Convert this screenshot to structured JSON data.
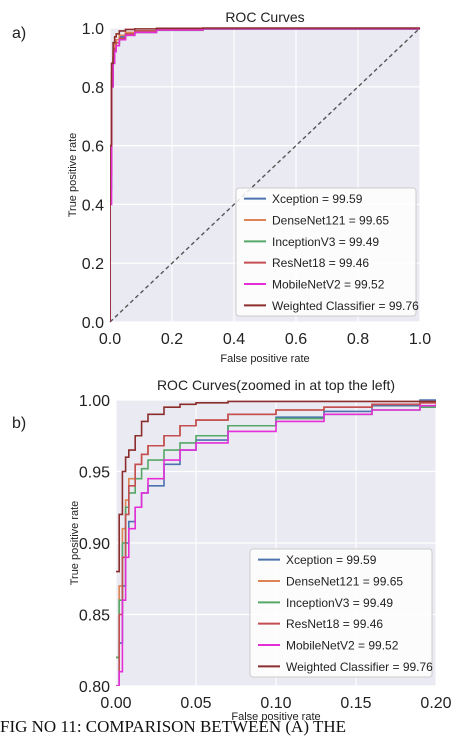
{
  "figure": {
    "panel_a_label": "a)",
    "panel_b_label": "b)",
    "caption": "FIG NO 11:  COMPARISON BETWEEN (A) THE"
  },
  "chart_data": [
    {
      "type": "line",
      "title": "ROC Curves",
      "xlabel": "False positive rate",
      "ylabel": "True positive rate",
      "xlim": [
        0,
        1
      ],
      "ylim": [
        0,
        1
      ],
      "xticks": [
        "0.0",
        "0.2",
        "0.4",
        "0.6",
        "0.8",
        "1.0"
      ],
      "yticks": [
        "0.0",
        "0.2",
        "0.4",
        "0.6",
        "0.8",
        "1.0"
      ],
      "grid": true,
      "legend_position": "lower-right",
      "diagonal_reference": true,
      "series": [
        {
          "name": "Xception = 99.59",
          "color": "#4c72b0",
          "x": [
            0,
            0,
            0.005,
            0.01,
            0.015,
            0.02,
            0.03,
            0.05,
            0.08,
            0.15,
            0.3,
            1.0
          ],
          "y": [
            0,
            0.5,
            0.82,
            0.9,
            0.93,
            0.95,
            0.97,
            0.98,
            0.99,
            0.995,
            0.998,
            1.0
          ]
        },
        {
          "name": "DenseNet121 = 99.65",
          "color": "#dd8452",
          "x": [
            0,
            0,
            0.005,
            0.01,
            0.015,
            0.02,
            0.03,
            0.05,
            0.08,
            0.15,
            0.3,
            1.0
          ],
          "y": [
            0,
            0.55,
            0.85,
            0.92,
            0.95,
            0.96,
            0.975,
            0.985,
            0.99,
            0.995,
            0.998,
            1.0
          ]
        },
        {
          "name": "InceptionV3 = 99.49",
          "color": "#55a868",
          "x": [
            0,
            0,
            0.005,
            0.01,
            0.015,
            0.02,
            0.03,
            0.05,
            0.08,
            0.15,
            0.3,
            1.0
          ],
          "y": [
            0,
            0.45,
            0.8,
            0.88,
            0.92,
            0.94,
            0.96,
            0.975,
            0.985,
            0.992,
            0.996,
            1.0
          ]
        },
        {
          "name": "ResNet18 = 99.46",
          "color": "#c44e52",
          "x": [
            0,
            0,
            0.005,
            0.01,
            0.015,
            0.02,
            0.03,
            0.05,
            0.08,
            0.15,
            0.3,
            1.0
          ],
          "y": [
            0,
            0.5,
            0.82,
            0.9,
            0.93,
            0.95,
            0.965,
            0.98,
            0.99,
            0.995,
            0.998,
            1.0
          ]
        },
        {
          "name": "MobileNetV2 = 99.52",
          "color": "#e62ed8",
          "x": [
            0,
            0,
            0.005,
            0.01,
            0.015,
            0.02,
            0.03,
            0.05,
            0.08,
            0.15,
            0.3,
            1.0
          ],
          "y": [
            0,
            0.4,
            0.8,
            0.88,
            0.92,
            0.94,
            0.96,
            0.975,
            0.985,
            0.993,
            0.997,
            1.0
          ]
        },
        {
          "name": "Weighted Classifier = 99.76",
          "color": "#8c2d2d",
          "x": [
            0,
            0,
            0.005,
            0.01,
            0.015,
            0.02,
            0.03,
            0.05,
            0.08,
            0.15,
            0.3,
            1.0
          ],
          "y": [
            0,
            0.6,
            0.88,
            0.95,
            0.97,
            0.98,
            0.99,
            0.995,
            0.997,
            0.999,
            1.0,
            1.0
          ]
        }
      ]
    },
    {
      "type": "line",
      "title": "ROC Curves(zoomed in at top the left)",
      "xlabel": "False positive rate",
      "ylabel": "True positive rate",
      "xlim": [
        0,
        0.2
      ],
      "ylim": [
        0.8,
        1.0
      ],
      "xticks": [
        "0.00",
        "0.05",
        "0.10",
        "0.15",
        "0.20"
      ],
      "yticks": [
        "0.80",
        "0.85",
        "0.90",
        "0.95",
        "1.00"
      ],
      "grid": true,
      "legend_position": "lower-right",
      "series": [
        {
          "name": "Xception = 99.59",
          "color": "#4c72b0",
          "x": [
            0,
            0.002,
            0.004,
            0.006,
            0.008,
            0.012,
            0.016,
            0.02,
            0.03,
            0.04,
            0.05,
            0.07,
            0.1,
            0.13,
            0.16,
            0.19,
            0.2
          ],
          "y": [
            0.8,
            0.83,
            0.87,
            0.9,
            0.915,
            0.925,
            0.935,
            0.94,
            0.955,
            0.965,
            0.972,
            0.982,
            0.988,
            0.992,
            0.996,
            1.0,
            1.0
          ]
        },
        {
          "name": "DenseNet121 = 99.65",
          "color": "#dd8452",
          "x": [
            0,
            0.002,
            0.004,
            0.006,
            0.008,
            0.012,
            0.016,
            0.02,
            0.03,
            0.04,
            0.05,
            0.07,
            0.1,
            0.13,
            0.16,
            0.19,
            0.2
          ],
          "y": [
            0.82,
            0.87,
            0.91,
            0.93,
            0.945,
            0.955,
            0.962,
            0.968,
            0.975,
            0.982,
            0.986,
            0.99,
            0.993,
            0.995,
            0.997,
            0.998,
            0.998
          ]
        },
        {
          "name": "InceptionV3 = 99.49",
          "color": "#55a868",
          "x": [
            0,
            0.002,
            0.004,
            0.006,
            0.008,
            0.012,
            0.016,
            0.02,
            0.03,
            0.04,
            0.05,
            0.07,
            0.1,
            0.13,
            0.16,
            0.19,
            0.2
          ],
          "y": [
            0.82,
            0.86,
            0.9,
            0.925,
            0.935,
            0.945,
            0.952,
            0.958,
            0.965,
            0.97,
            0.975,
            0.982,
            0.987,
            0.99,
            0.993,
            0.995,
            0.996
          ]
        },
        {
          "name": "ResNet18 = 99.46",
          "color": "#c44e52",
          "x": [
            0,
            0.002,
            0.004,
            0.006,
            0.008,
            0.012,
            0.016,
            0.02,
            0.03,
            0.04,
            0.05,
            0.07,
            0.1,
            0.13,
            0.16,
            0.19,
            0.2
          ],
          "y": [
            0.8,
            0.85,
            0.89,
            0.92,
            0.94,
            0.955,
            0.962,
            0.968,
            0.975,
            0.982,
            0.986,
            0.99,
            0.993,
            0.995,
            0.997,
            0.998,
            0.998
          ]
        },
        {
          "name": "MobileNetV2 = 99.52",
          "color": "#e62ed8",
          "x": [
            0,
            0.002,
            0.004,
            0.006,
            0.008,
            0.012,
            0.016,
            0.02,
            0.03,
            0.04,
            0.05,
            0.07,
            0.1,
            0.13,
            0.16,
            0.19,
            0.2
          ],
          "y": [
            0.8,
            0.81,
            0.86,
            0.89,
            0.91,
            0.925,
            0.935,
            0.945,
            0.958,
            0.965,
            0.97,
            0.978,
            0.985,
            0.99,
            0.993,
            0.996,
            0.997
          ]
        },
        {
          "name": "Weighted Classifier = 99.76",
          "color": "#8c2d2d",
          "x": [
            0,
            0.002,
            0.004,
            0.006,
            0.008,
            0.012,
            0.016,
            0.02,
            0.03,
            0.04,
            0.05,
            0.07,
            0.1,
            0.13,
            0.16,
            0.19,
            0.2
          ],
          "y": [
            0.88,
            0.92,
            0.95,
            0.96,
            0.965,
            0.975,
            0.985,
            0.99,
            0.995,
            0.997,
            0.998,
            0.999,
            0.999,
            0.999,
            0.999,
            0.999,
            0.999
          ]
        }
      ]
    }
  ]
}
